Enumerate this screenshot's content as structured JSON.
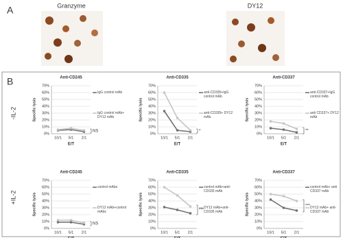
{
  "figure": {
    "panel_labels": [
      "A",
      "B"
    ],
    "image_labels": [
      "Granzyme",
      "DY12"
    ],
    "row_labels": [
      "-IL-2",
      "+IL-2"
    ]
  },
  "chart_data": [
    {
      "type": "line",
      "title": "Anti-CD245",
      "x_label": "E/T",
      "y_label": "Specific lysis",
      "categories": [
        "10/1",
        "5/1",
        "2/1"
      ],
      "ylim": [
        0,
        70
      ],
      "yticks": [
        {
          "value": 0,
          "label": "0%"
        },
        {
          "value": 10,
          "label": "10%"
        },
        {
          "value": 20,
          "label": "20%"
        },
        {
          "value": 30,
          "label": "30%"
        },
        {
          "value": 40,
          "label": "40%"
        },
        {
          "value": 50,
          "label": "50%"
        },
        {
          "value": 60,
          "label": "60%"
        },
        {
          "value": 70,
          "label": "70%"
        }
      ],
      "grid": true,
      "annotation": "NS",
      "series": [
        {
          "name": "IgG control mAb",
          "color": "#6f6f6f",
          "values": [
            5,
            6,
            3
          ]
        },
        {
          "name": "IgG control mAb+ DY12 mAb",
          "color": "#c4c4c4",
          "values": [
            6,
            8,
            5
          ]
        }
      ]
    },
    {
      "type": "line",
      "title": "Anti-CD335",
      "x_label": "E/T",
      "y_label": "Specific lysis",
      "categories": [
        "10/1",
        "5/1",
        "2/1"
      ],
      "ylim": [
        0,
        70
      ],
      "yticks": [
        {
          "value": 0,
          "label": "0%"
        },
        {
          "value": 10,
          "label": "10%"
        },
        {
          "value": 20,
          "label": "20%"
        },
        {
          "value": 30,
          "label": "30%"
        },
        {
          "value": 40,
          "label": "40%"
        },
        {
          "value": 50,
          "label": "50%"
        },
        {
          "value": 60,
          "label": "60%"
        },
        {
          "value": 70,
          "label": "70%"
        }
      ],
      "grid": true,
      "annotation": "*",
      "series": [
        {
          "name": "anti-CD335+IgG control mAb",
          "color": "#6f6f6f",
          "values": [
            33,
            5,
            3
          ]
        },
        {
          "name": "anti-CD335+ DY12 mAb",
          "color": "#c4c4c4",
          "values": [
            60,
            23,
            5
          ]
        }
      ]
    },
    {
      "type": "line",
      "title": "Anti-CD337",
      "x_label": "E/T",
      "y_label": "Specific lysis",
      "categories": [
        "10/1",
        "5/1",
        "2/1"
      ],
      "ylim": [
        0,
        70
      ],
      "yticks": [
        {
          "value": 0,
          "label": "0%"
        },
        {
          "value": 10,
          "label": "10%"
        },
        {
          "value": 20,
          "label": "20%"
        },
        {
          "value": 30,
          "label": "30%"
        },
        {
          "value": 40,
          "label": "40%"
        },
        {
          "value": 50,
          "label": "50%"
        },
        {
          "value": 60,
          "label": "60%"
        },
        {
          "value": 70,
          "label": "70%"
        }
      ],
      "grid": true,
      "annotation": "**",
      "series": [
        {
          "name": "anti-CD337+IgG control mAb",
          "color": "#6f6f6f",
          "values": [
            8,
            6,
            2
          ]
        },
        {
          "name": "anti CD337+ DY12 mAb",
          "color": "#c4c4c4",
          "values": [
            18,
            15,
            7
          ]
        }
      ]
    },
    {
      "type": "line",
      "title": "Anti-CD245",
      "x_label": "E/T",
      "y_label": "Specific lysis",
      "categories": [
        "10/1",
        "5/1",
        "2/1"
      ],
      "ylim": [
        0,
        70
      ],
      "yticks": [
        {
          "value": 0,
          "label": "0%"
        },
        {
          "value": 10,
          "label": "10%"
        },
        {
          "value": 20,
          "label": "20%"
        },
        {
          "value": 30,
          "label": "30%"
        },
        {
          "value": 40,
          "label": "40%"
        },
        {
          "value": 50,
          "label": "50%"
        },
        {
          "value": 60,
          "label": "60%"
        },
        {
          "value": 70,
          "label": "70%"
        }
      ],
      "grid": true,
      "annotation": "NS",
      "series": [
        {
          "name": "control mAbs",
          "color": "#6f6f6f",
          "values": [
            9,
            9,
            6
          ]
        },
        {
          "name": "DY12 mAb+control mAbs",
          "color": "#c4c4c4",
          "values": [
            12,
            12,
            8
          ]
        }
      ]
    },
    {
      "type": "line",
      "title": "Anti-CD335",
      "x_label": "E/T",
      "y_label": "Specific lysis",
      "categories": [
        "10/1",
        "5/1",
        "2/1"
      ],
      "ylim": [
        0,
        70
      ],
      "yticks": [
        {
          "value": 0,
          "label": "0%"
        },
        {
          "value": 10,
          "label": "10%"
        },
        {
          "value": 20,
          "label": "20%"
        },
        {
          "value": 30,
          "label": "30%"
        },
        {
          "value": 40,
          "label": "40%"
        },
        {
          "value": 50,
          "label": "50%"
        },
        {
          "value": 60,
          "label": "60%"
        },
        {
          "value": 70,
          "label": "70%"
        }
      ],
      "grid": true,
      "annotation": "***",
      "series": [
        {
          "name": "control mAb+anti-CD335 mAb",
          "color": "#6f6f6f",
          "values": [
            31,
            27,
            22
          ]
        },
        {
          "name": "DY12 mAb+anti-CD335 mAb",
          "color": "#c4c4c4",
          "values": [
            60,
            48,
            32
          ]
        }
      ]
    },
    {
      "type": "line",
      "title": "Anti-CD337",
      "x_label": "E/T",
      "y_label": "Specific lysis",
      "categories": [
        "10/1",
        "5/1",
        "2/1"
      ],
      "ylim": [
        0,
        70
      ],
      "yticks": [
        {
          "value": 0,
          "label": "0%"
        },
        {
          "value": 10,
          "label": "10%"
        },
        {
          "value": 20,
          "label": "20%"
        },
        {
          "value": 30,
          "label": "30%"
        },
        {
          "value": 40,
          "label": "40%"
        },
        {
          "value": 50,
          "label": "50%"
        },
        {
          "value": 60,
          "label": "60%"
        },
        {
          "value": 70,
          "label": "70%"
        }
      ],
      "grid": true,
      "annotation": "***",
      "series": [
        {
          "name": "control mAb+ anti CD337 mAb",
          "color": "#6f6f6f",
          "values": [
            42,
            30,
            26
          ]
        },
        {
          "name": "DY12 mAb+ anti-CD337 mAb",
          "color": "#c4c4c4",
          "values": [
            50,
            47,
            40
          ]
        }
      ]
    }
  ]
}
